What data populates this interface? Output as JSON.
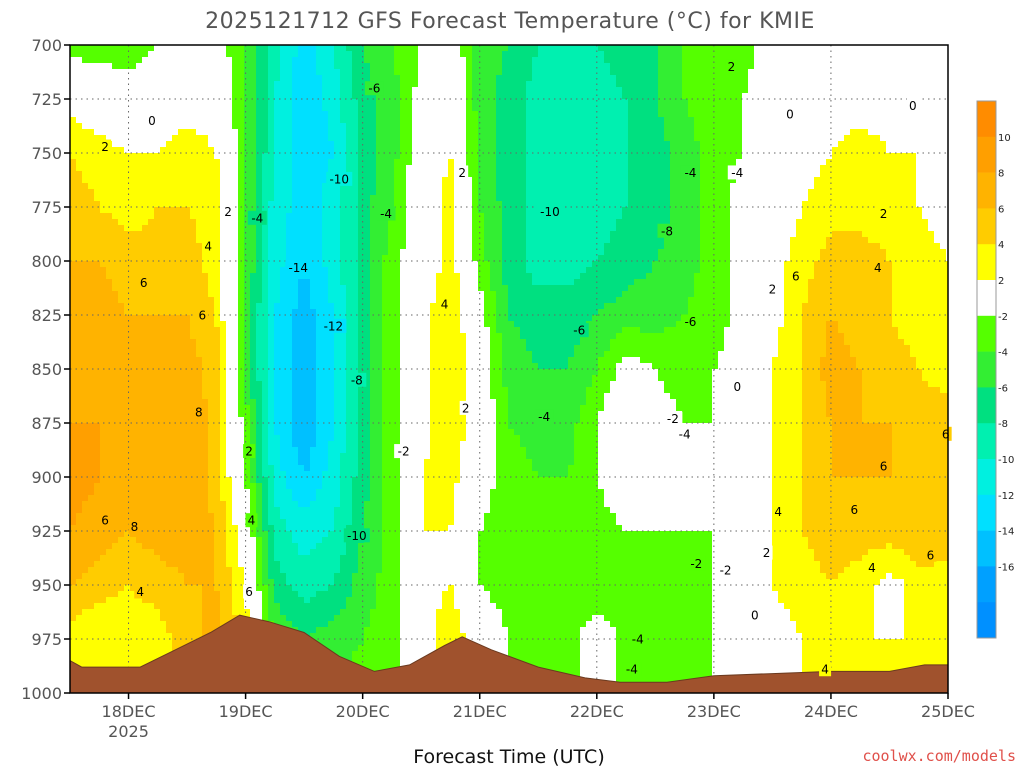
{
  "chart_data": {
    "type": "heatmap",
    "title": "2025121712 GFS Forecast Temperature (°C) for KMIE",
    "xlabel": "Forecast Time (UTC)",
    "ylabel": "",
    "credit": "coolwx.com/models",
    "y_axis": {
      "inverted": true,
      "range": [
        700,
        1000
      ],
      "ticks": [
        "700",
        "725",
        "750",
        "775",
        "800",
        "825",
        "850",
        "875",
        "900",
        "925",
        "950",
        "975",
        "1000"
      ]
    },
    "x_axis": {
      "range_days": [
        17.5,
        25.0
      ],
      "ticks": [
        {
          "day": 18,
          "label": "18DEC"
        },
        {
          "day": 19,
          "label": "19DEC"
        },
        {
          "day": 20,
          "label": "20DEC"
        },
        {
          "day": 21,
          "label": "21DEC"
        },
        {
          "day": 22,
          "label": "22DEC"
        },
        {
          "day": 23,
          "label": "23DEC"
        },
        {
          "day": 24,
          "label": "24DEC"
        },
        {
          "day": 25,
          "label": "25DEC"
        }
      ],
      "sublabel": {
        "day": 18,
        "label": "2025"
      }
    },
    "grid": true,
    "colorbar": {
      "placement": "right",
      "bins": [
        {
          "from": 10,
          "to": 12,
          "color": "#ff8c00"
        },
        {
          "from": 8,
          "to": 10,
          "color": "#ff9f00"
        },
        {
          "from": 6,
          "to": 8,
          "color": "#ffb300"
        },
        {
          "from": 4,
          "to": 6,
          "color": "#ffcc00"
        },
        {
          "from": 2,
          "to": 4,
          "color": "#ffff00"
        },
        {
          "from": -2,
          "to": 2,
          "color": "#ffffff"
        },
        {
          "from": -4,
          "to": -2,
          "color": "#55ff00"
        },
        {
          "from": -6,
          "to": -4,
          "color": "#33ee33"
        },
        {
          "from": -8,
          "to": -6,
          "color": "#00e080"
        },
        {
          "from": -10,
          "to": -8,
          "color": "#00f0b0"
        },
        {
          "from": -12,
          "to": -10,
          "color": "#00f0e0"
        },
        {
          "from": -14,
          "to": -12,
          "color": "#00e0ff"
        },
        {
          "from": -16,
          "to": -14,
          "color": "#00c0ff"
        },
        {
          "from": -18,
          "to": -16,
          "color": "#00a0ff"
        },
        {
          "from": -20,
          "to": -18,
          "color": "#0090ff"
        }
      ],
      "labels": [
        "10",
        "8",
        "6",
        "4",
        "2",
        "-2",
        "-4",
        "-6",
        "-8",
        "-10",
        "-12",
        "-14",
        "-16"
      ]
    },
    "terrain_color": "#a0522d",
    "terrain_surface_pressure": [
      {
        "day": 17.5,
        "p": 985
      },
      {
        "day": 17.6,
        "p": 988
      },
      {
        "day": 18.1,
        "p": 988
      },
      {
        "day": 18.4,
        "p": 980
      },
      {
        "day": 18.7,
        "p": 972
      },
      {
        "day": 18.95,
        "p": 964
      },
      {
        "day": 19.2,
        "p": 967
      },
      {
        "day": 19.5,
        "p": 972
      },
      {
        "day": 19.8,
        "p": 983
      },
      {
        "day": 20.1,
        "p": 990
      },
      {
        "day": 20.4,
        "p": 987
      },
      {
        "day": 20.7,
        "p": 978
      },
      {
        "day": 20.85,
        "p": 974
      },
      {
        "day": 21.1,
        "p": 980
      },
      {
        "day": 21.5,
        "p": 988
      },
      {
        "day": 21.9,
        "p": 993
      },
      {
        "day": 22.2,
        "p": 995
      },
      {
        "day": 22.6,
        "p": 995
      },
      {
        "day": 23.0,
        "p": 992
      },
      {
        "day": 23.5,
        "p": 991
      },
      {
        "day": 24.0,
        "p": 990
      },
      {
        "day": 24.5,
        "p": 990
      },
      {
        "day": 24.8,
        "p": 987
      },
      {
        "day": 25.0,
        "p": 987
      }
    ],
    "temperature_grid": {
      "x_days": [
        17.5,
        17.75,
        18.0,
        18.25,
        18.5,
        18.75,
        19.0,
        19.25,
        19.5,
        19.75,
        20.0,
        20.25,
        20.5,
        20.75,
        21.0,
        21.25,
        21.5,
        21.75,
        22.0,
        22.25,
        22.5,
        22.75,
        23.0,
        23.25,
        23.5,
        23.75,
        24.0,
        24.25,
        24.5,
        24.75,
        25.0
      ],
      "pressures": [
        700,
        725,
        750,
        775,
        800,
        825,
        850,
        875,
        900,
        925,
        950,
        975,
        1000
      ],
      "values_C": [
        [
          -3,
          -3,
          -3,
          -2,
          -1,
          -1,
          -4,
          -9,
          -13,
          -10,
          -6,
          -4,
          -2,
          0,
          -5,
          -6,
          -8,
          -9,
          -8,
          -7,
          -6,
          -4,
          -3,
          -3,
          -1,
          0,
          0,
          -1,
          0,
          0,
          2
        ],
        [
          1,
          0,
          -1,
          0,
          1,
          1,
          -4,
          -10,
          -14,
          -11,
          -7,
          -5,
          -1,
          1,
          -5,
          -7,
          -9,
          -10,
          -9,
          -8,
          -6,
          -4,
          -3,
          -2,
          0,
          0,
          1,
          1,
          1,
          1,
          1
        ],
        [
          4,
          3,
          2,
          2,
          3,
          2,
          -4,
          -10,
          -14,
          -12,
          -7,
          -5,
          0,
          2,
          -5,
          -7,
          -9,
          -10,
          -9,
          -8,
          -7,
          -5,
          -3,
          -2,
          0,
          1,
          2,
          3,
          2,
          2,
          0
        ],
        [
          5,
          4,
          3,
          4,
          4,
          3,
          -4,
          -11,
          -13,
          -11,
          -7,
          -4,
          0,
          3,
          -4,
          -7,
          -9,
          -10,
          -9,
          -8,
          -7,
          -5,
          -3,
          -1,
          0,
          2,
          3,
          3,
          3,
          2,
          1
        ],
        [
          6,
          6,
          5,
          5,
          5,
          3,
          -4,
          -11,
          -14,
          -11,
          -7,
          -3,
          0,
          3,
          -3,
          -7,
          -9,
          -9,
          -8,
          -7,
          -6,
          -5,
          -3,
          -1,
          1,
          3,
          5,
          5,
          4,
          3,
          2
        ],
        [
          7,
          7,
          6,
          6,
          6,
          4,
          -5,
          -12,
          -15,
          -12,
          -7,
          -3,
          1,
          4,
          -1,
          -6,
          -7,
          -7,
          -6,
          -5,
          -5,
          -4,
          -3,
          -1,
          1,
          4,
          6,
          5,
          4,
          3,
          2
        ],
        [
          7,
          7,
          6,
          6,
          7,
          5,
          -5,
          -12,
          -16,
          -12,
          -7,
          -3,
          1,
          4,
          0,
          -5,
          -6,
          -6,
          -4,
          -1,
          -2,
          -3,
          -2,
          -1,
          2,
          4,
          7,
          6,
          5,
          4,
          3
        ],
        [
          8,
          8,
          6,
          6,
          8,
          5,
          -3,
          -12,
          -16,
          -12,
          -7,
          -3,
          1,
          4,
          0,
          -4,
          -5,
          -5,
          -2,
          1,
          -1,
          -2,
          -2,
          -1,
          2,
          4,
          6,
          6,
          6,
          5,
          5
        ],
        [
          9,
          8,
          7,
          7,
          8,
          5,
          -2,
          -11,
          -14,
          -11,
          -7,
          -3,
          2,
          3,
          -1,
          -3,
          -4,
          -4,
          -2,
          0,
          -1,
          -2,
          -2,
          0,
          2,
          4,
          6,
          6,
          6,
          6,
          5
        ],
        [
          8,
          7,
          6,
          7,
          7,
          6,
          0,
          -9,
          -11,
          -10,
          -6,
          -3,
          2,
          2,
          -2,
          -3,
          -4,
          -4,
          -3,
          -2,
          -2,
          -2,
          -2,
          0,
          2,
          4,
          5,
          5,
          5,
          6,
          5
        ],
        [
          6,
          5,
          4,
          5,
          6,
          6,
          2,
          -7,
          -9,
          -8,
          -5,
          -3,
          1,
          2,
          -2,
          -3,
          -4,
          -4,
          -4,
          -3,
          -3,
          -3,
          -2,
          0,
          2,
          3,
          4,
          3,
          1,
          3,
          3
        ],
        [
          3,
          2,
          2,
          3,
          5,
          7,
          3,
          -4,
          -6,
          -5,
          -4,
          -3,
          0,
          4,
          0,
          -2,
          -3,
          -3,
          0,
          -3,
          -3,
          -3,
          -2,
          0,
          1,
          2,
          3,
          2,
          2,
          2,
          2
        ],
        [
          2,
          2,
          2,
          3,
          5,
          7,
          3,
          -3,
          -5,
          -4,
          -3,
          -3,
          0,
          4,
          1,
          -2,
          -3,
          -3,
          0,
          -3,
          -3,
          -3,
          -2,
          0,
          1,
          2,
          3,
          2,
          2,
          2,
          2
        ]
      ]
    },
    "contour_labels": [
      {
        "text": "0",
        "day": 18.2,
        "p": 735
      },
      {
        "text": "2",
        "day": 17.8,
        "p": 747
      },
      {
        "text": "2",
        "day": 18.85,
        "p": 777
      },
      {
        "text": "4",
        "day": 18.68,
        "p": 793
      },
      {
        "text": "-4",
        "day": 19.1,
        "p": 780
      },
      {
        "text": "6",
        "day": 18.13,
        "p": 810
      },
      {
        "text": "6",
        "day": 18.63,
        "p": 825
      },
      {
        "text": "8",
        "day": 18.6,
        "p": 870
      },
      {
        "text": "2",
        "day": 19.03,
        "p": 888
      },
      {
        "text": "6",
        "day": 17.8,
        "p": 920
      },
      {
        "text": "8",
        "day": 18.05,
        "p": 923
      },
      {
        "text": "4",
        "day": 19.05,
        "p": 920
      },
      {
        "text": "4",
        "day": 18.1,
        "p": 953
      },
      {
        "text": "6",
        "day": 19.03,
        "p": 953
      },
      {
        "text": "-6",
        "day": 20.1,
        "p": 720
      },
      {
        "text": "-10",
        "day": 19.8,
        "p": 762
      },
      {
        "text": "-4",
        "day": 20.2,
        "p": 778
      },
      {
        "text": "-14",
        "day": 19.45,
        "p": 803
      },
      {
        "text": "-12",
        "day": 19.75,
        "p": 830
      },
      {
        "text": "-8",
        "day": 19.95,
        "p": 855
      },
      {
        "text": "-2",
        "day": 20.35,
        "p": 888
      },
      {
        "text": "-10",
        "day": 19.95,
        "p": 927
      },
      {
        "text": "2",
        "day": 20.85,
        "p": 759
      },
      {
        "text": "4",
        "day": 20.7,
        "p": 820
      },
      {
        "text": "2",
        "day": 20.88,
        "p": 868
      },
      {
        "text": "-10",
        "day": 21.6,
        "p": 777
      },
      {
        "text": "-6",
        "day": 21.85,
        "p": 832
      },
      {
        "text": "-4",
        "day": 21.55,
        "p": 872
      },
      {
        "text": "-8",
        "day": 22.6,
        "p": 786
      },
      {
        "text": "-6",
        "day": 22.8,
        "p": 828
      },
      {
        "text": "-4",
        "day": 22.8,
        "p": 759
      },
      {
        "text": "-4",
        "day": 23.2,
        "p": 759
      },
      {
        "text": "2",
        "day": 23.15,
        "p": 710
      },
      {
        "text": "0",
        "day": 23.65,
        "p": 732
      },
      {
        "text": "0",
        "day": 24.7,
        "p": 728
      },
      {
        "text": "2",
        "day": 24.45,
        "p": 778
      },
      {
        "text": "4",
        "day": 24.4,
        "p": 803
      },
      {
        "text": "2",
        "day": 23.5,
        "p": 813
      },
      {
        "text": "6",
        "day": 23.7,
        "p": 807
      },
      {
        "text": "0",
        "day": 23.2,
        "p": 858
      },
      {
        "text": "-2",
        "day": 22.65,
        "p": 873
      },
      {
        "text": "-4",
        "day": 22.75,
        "p": 880
      },
      {
        "text": "-2",
        "day": 22.85,
        "p": 940
      },
      {
        "text": "-2",
        "day": 23.1,
        "p": 943
      },
      {
        "text": "0",
        "day": 23.35,
        "p": 964
      },
      {
        "text": "4",
        "day": 23.55,
        "p": 916
      },
      {
        "text": "2",
        "day": 23.45,
        "p": 935
      },
      {
        "text": "6",
        "day": 24.45,
        "p": 895
      },
      {
        "text": "6",
        "day": 24.2,
        "p": 915
      },
      {
        "text": "4",
        "day": 24.35,
        "p": 942
      },
      {
        "text": "6",
        "day": 24.85,
        "p": 936
      },
      {
        "text": "6",
        "day": 24.98,
        "p": 880
      },
      {
        "text": "-4",
        "day": 22.35,
        "p": 975
      },
      {
        "text": "-4",
        "day": 22.3,
        "p": 989
      },
      {
        "text": "4",
        "day": 23.95,
        "p": 989
      }
    ]
  }
}
